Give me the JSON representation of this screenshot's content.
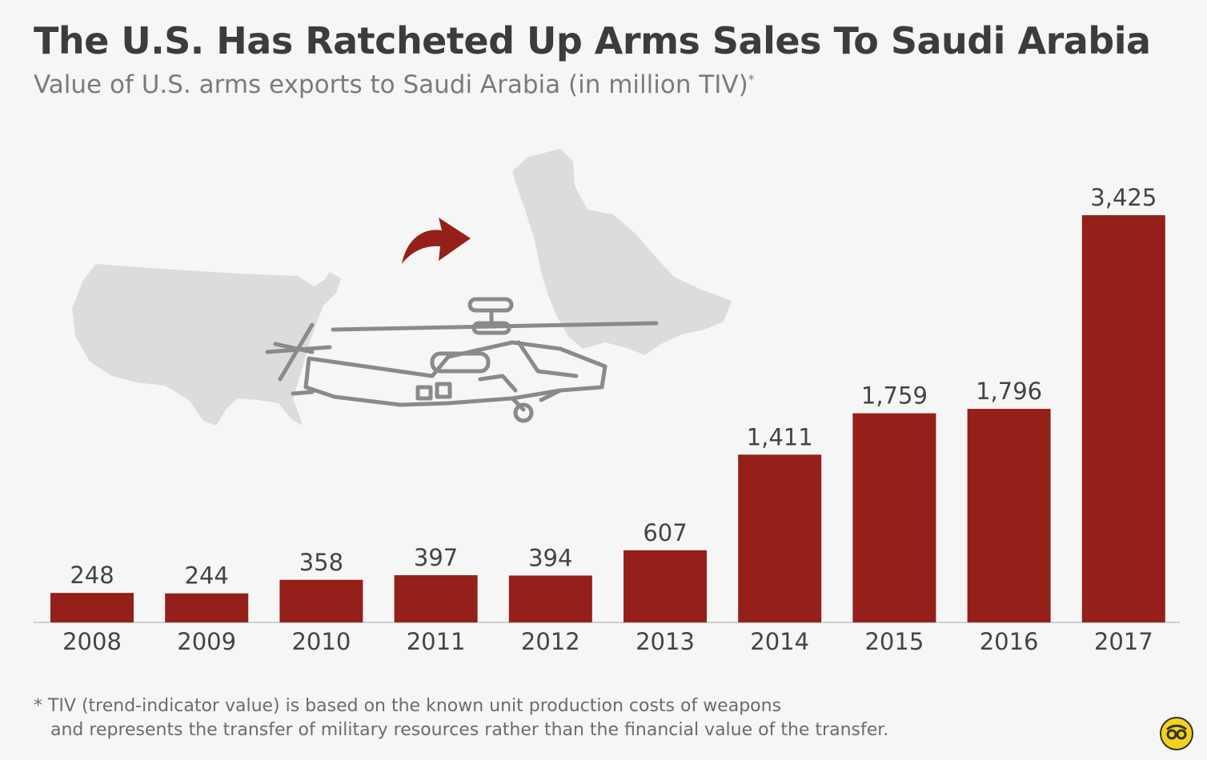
{
  "header": {
    "title": "The U.S. Has Ratcheted Up Arms Sales To Saudi Arabia",
    "subtitle": "Value of U.S. arms exports to Saudi Arabia (in million TIV)",
    "subtitle_mark": "*"
  },
  "footnote": {
    "line1": "* TIV (trend-indicator value) is based on the known unit production costs of weapons",
    "line2": "and represents the transfer of military resources rather than the financial value of the transfer."
  },
  "colors": {
    "bar": "#951f19",
    "illustration_map": "#dcdcdc",
    "illustration_line": "#8a8a8a",
    "arrow": "#951f19",
    "logo": "#f4d21c"
  },
  "icons": {
    "illustration": "helicopter-over-map-icon",
    "arrow": "curved-arrow-icon",
    "logo": "statista-logo-icon"
  },
  "chart_data": {
    "type": "bar",
    "categories": [
      "2008",
      "2009",
      "2010",
      "2011",
      "2012",
      "2013",
      "2014",
      "2015",
      "2016",
      "2017"
    ],
    "values": [
      248,
      244,
      358,
      397,
      394,
      607,
      1411,
      1759,
      1796,
      3425
    ],
    "value_labels": [
      "248",
      "244",
      "358",
      "397",
      "394",
      "607",
      "1,411",
      "1,759",
      "1,796",
      "3,425"
    ],
    "title": "The U.S. Has Ratcheted Up Arms Sales To Saudi Arabia",
    "xlabel": "",
    "ylabel": "",
    "ylim": [
      0,
      3425
    ],
    "grid": false,
    "legend": "none"
  }
}
